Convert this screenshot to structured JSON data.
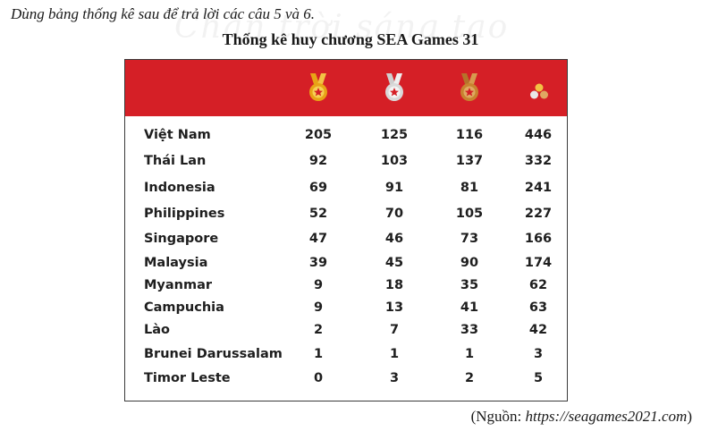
{
  "intro": "Dùng bảng thống kê sau để trả lời các câu 5 và 6.",
  "watermark": "Chân trời sáng tạo",
  "title": "Thống kê huy chương SEA Games 31",
  "colors": {
    "header": "#d51f26",
    "gold": "#e8a316",
    "silver": "#d9d9d9",
    "bronze": "#c8832f"
  },
  "header_icons": [
    "gold-medal-icon",
    "silver-medal-icon",
    "bronze-medal-icon",
    "total-medals-icon"
  ],
  "rows": [
    {
      "country": "Việt Nam",
      "gold": "205",
      "silver": "125",
      "bronze": "116",
      "total": "446"
    },
    {
      "country": "Thái Lan",
      "gold": "92",
      "silver": "103",
      "bronze": "137",
      "total": "332"
    },
    {
      "country": "Indonesia",
      "gold": "69",
      "silver": "91",
      "bronze": "81",
      "total": "241"
    },
    {
      "country": "Philippines",
      "gold": "52",
      "silver": "70",
      "bronze": "105",
      "total": "227"
    },
    {
      "country": "Singapore",
      "gold": "47",
      "silver": "46",
      "bronze": "73",
      "total": "166"
    },
    {
      "country": "Malaysia",
      "gold": "39",
      "silver": "45",
      "bronze": "90",
      "total": "174"
    },
    {
      "country": "Myanmar",
      "gold": "9",
      "silver": "18",
      "bronze": "35",
      "total": "62"
    },
    {
      "country": "Campuchia",
      "gold": "9",
      "silver": "13",
      "bronze": "41",
      "total": "63"
    },
    {
      "country": "Lào",
      "gold": "2",
      "silver": "7",
      "bronze": "33",
      "total": "42"
    },
    {
      "country": "Brunei Darussalam",
      "gold": "1",
      "silver": "1",
      "bronze": "1",
      "total": "3"
    },
    {
      "country": "Timor Leste",
      "gold": "0",
      "silver": "3",
      "bronze": "2",
      "total": "5"
    }
  ],
  "source": {
    "prefix": "(Nguồn: ",
    "url": "https://seagames2021.com",
    "suffix": ")"
  }
}
